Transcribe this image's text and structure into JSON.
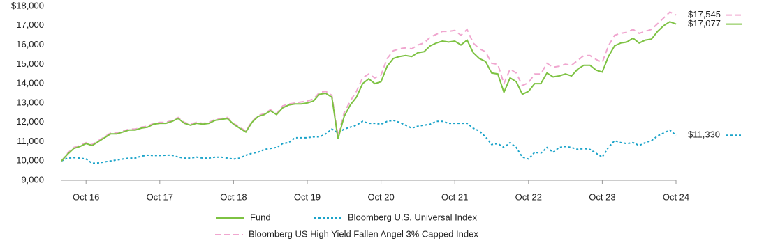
{
  "chart_data": {
    "type": "line",
    "categories": [
      null,
      null,
      null,
      null,
      "Oct 16",
      null,
      null,
      null,
      null,
      null,
      null,
      null,
      null,
      null,
      null,
      null,
      "Oct 17",
      null,
      null,
      null,
      null,
      null,
      null,
      null,
      null,
      null,
      null,
      null,
      "Oct 18",
      null,
      null,
      null,
      null,
      null,
      null,
      null,
      null,
      null,
      null,
      null,
      "Oct 19",
      null,
      null,
      null,
      null,
      null,
      null,
      null,
      null,
      null,
      null,
      null,
      "Oct 20",
      null,
      null,
      null,
      null,
      null,
      null,
      null,
      null,
      null,
      null,
      null,
      "Oct 21",
      null,
      null,
      null,
      null,
      null,
      null,
      null,
      null,
      null,
      null,
      null,
      "Oct 22",
      null,
      null,
      null,
      null,
      null,
      null,
      null,
      null,
      null,
      null,
      null,
      "Oct 23",
      null,
      null,
      null,
      null,
      null,
      null,
      null,
      null,
      null,
      null,
      null,
      "Oct 24"
    ],
    "series": [
      {
        "name": "Fund",
        "color": "#7dc242",
        "style": "solid",
        "end_label": "$17,077",
        "values": [
          10000,
          10350,
          10650,
          10750,
          10900,
          10800,
          11000,
          11200,
          11400,
          11400,
          11500,
          11600,
          11600,
          11700,
          11750,
          11900,
          11950,
          11950,
          12050,
          12200,
          11950,
          11850,
          11950,
          11900,
          11950,
          12100,
          12150,
          12200,
          11900,
          11700,
          11500,
          12000,
          12300,
          12400,
          12600,
          12400,
          12750,
          12900,
          12950,
          12950,
          13000,
          13100,
          13450,
          13500,
          13300,
          11150,
          12300,
          12900,
          13300,
          14000,
          14250,
          14000,
          14100,
          14900,
          15300,
          15400,
          15450,
          15400,
          15600,
          15650,
          15950,
          16100,
          16200,
          16150,
          16200,
          16000,
          16250,
          15600,
          15300,
          15150,
          14550,
          14500,
          13550,
          14300,
          14100,
          13450,
          13600,
          14000,
          14000,
          14550,
          14350,
          14400,
          14500,
          14400,
          14750,
          14950,
          14950,
          14700,
          14600,
          15400,
          15950,
          16100,
          16150,
          16350,
          16100,
          16250,
          16300,
          16700,
          17000,
          17200,
          17077
        ]
      },
      {
        "name": "Bloomberg U.S. Universal Index",
        "color": "#1aa3c9",
        "style": "dotted",
        "end_label": "$11,330",
        "values": [
          10000,
          10150,
          10170,
          10150,
          10100,
          9880,
          9900,
          9950,
          10000,
          10050,
          10100,
          10150,
          10150,
          10250,
          10300,
          10280,
          10280,
          10300,
          10300,
          10200,
          10150,
          10150,
          10200,
          10150,
          10150,
          10200,
          10200,
          10150,
          10100,
          10150,
          10300,
          10400,
          10450,
          10600,
          10650,
          10700,
          10900,
          10950,
          11200,
          11200,
          11200,
          11250,
          11250,
          11400,
          11650,
          11450,
          11650,
          11750,
          11850,
          12050,
          11950,
          11950,
          11900,
          12050,
          12100,
          12000,
          11850,
          11700,
          11800,
          11850,
          11900,
          12050,
          12050,
          11950,
          11950,
          11950,
          11950,
          11700,
          11550,
          11250,
          10850,
          10900,
          10700,
          10950,
          10700,
          10200,
          10100,
          10450,
          10400,
          10700,
          10450,
          10700,
          10750,
          10700,
          10600,
          10650,
          10600,
          10400,
          10200,
          10700,
          11050,
          10950,
          10900,
          10950,
          10800,
          10950,
          11050,
          11300,
          11450,
          11600,
          11330
        ]
      },
      {
        "name": "Bloomberg US High Yield Fallen Angel 3% Capped Index",
        "color": "#f0a6cf",
        "style": "dashed",
        "end_label": "$17,545",
        "values": [
          10000,
          10400,
          10700,
          10800,
          10950,
          10850,
          11050,
          11250,
          11450,
          11450,
          11550,
          11650,
          11650,
          11750,
          11800,
          11950,
          12000,
          12000,
          12100,
          12250,
          12000,
          11900,
          12000,
          11950,
          12000,
          12150,
          12200,
          12250,
          11950,
          11750,
          11550,
          12050,
          12350,
          12450,
          12650,
          12450,
          12850,
          12950,
          13000,
          13050,
          13100,
          13200,
          13550,
          13600,
          13400,
          11300,
          12500,
          13100,
          13600,
          14300,
          14500,
          14300,
          14450,
          15300,
          15700,
          15800,
          15850,
          15800,
          16000,
          16100,
          16400,
          16550,
          16700,
          16700,
          16750,
          16500,
          16800,
          16100,
          15800,
          15650,
          15050,
          15000,
          14000,
          14750,
          14550,
          13900,
          14050,
          14500,
          14500,
          15050,
          14850,
          14900,
          15000,
          14950,
          15200,
          15450,
          15450,
          15250,
          15100,
          15950,
          16500,
          16600,
          16650,
          16800,
          16600,
          16700,
          16800,
          17100,
          17400,
          17700,
          17545
        ]
      }
    ],
    "ylim": [
      9000,
      18000
    ],
    "yticks": [
      {
        "value": 9000,
        "label": "9,000"
      },
      {
        "value": 10000,
        "label": "10,000"
      },
      {
        "value": 11000,
        "label": "11,000"
      },
      {
        "value": 12000,
        "label": "12,000"
      },
      {
        "value": 13000,
        "label": "13,000"
      },
      {
        "value": 14000,
        "label": "14,000"
      },
      {
        "value": 15000,
        "label": "15,000"
      },
      {
        "value": 16000,
        "label": "16,000"
      },
      {
        "value": 17000,
        "label": "17,000"
      },
      {
        "value": 18000,
        "label": "$18,000"
      }
    ]
  }
}
